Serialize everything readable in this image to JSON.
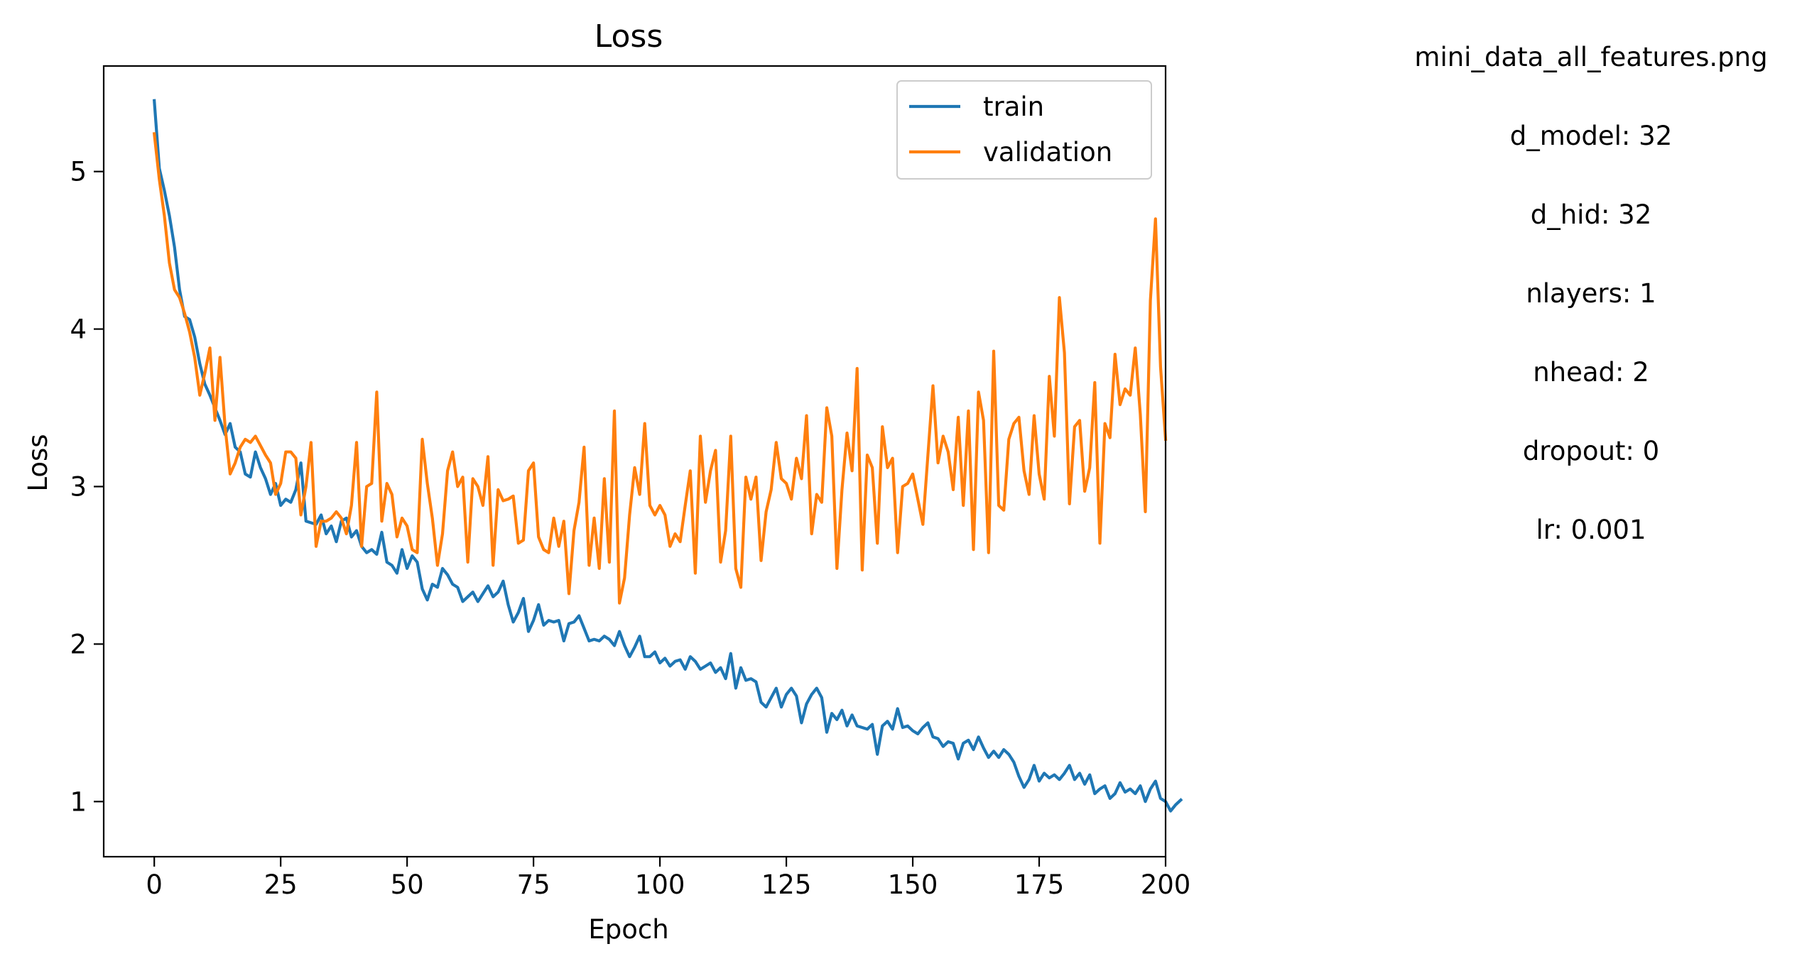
{
  "chart_data": {
    "type": "line",
    "title": "Loss",
    "xlabel": "Epoch",
    "ylabel": "Loss",
    "xlim": [
      -10,
      200
    ],
    "ylim": [
      0.65,
      5.67
    ],
    "xticks": [
      0,
      25,
      50,
      75,
      100,
      125,
      150,
      175,
      200
    ],
    "yticks": [
      1,
      2,
      3,
      4,
      5
    ],
    "grid": false,
    "legend": "top-right",
    "series": [
      {
        "name": "train",
        "color": "#1f77b4",
        "values": [
          5.45,
          5.02,
          4.88,
          4.72,
          4.52,
          4.25,
          4.08,
          4.06,
          3.95,
          3.78,
          3.65,
          3.58,
          3.5,
          3.42,
          3.33,
          3.4,
          3.25,
          3.22,
          3.08,
          3.06,
          3.22,
          3.12,
          3.05,
          2.95,
          3.02,
          2.88,
          2.92,
          2.9,
          2.98,
          3.15,
          2.78,
          2.77,
          2.76,
          2.82,
          2.7,
          2.75,
          2.65,
          2.78,
          2.8,
          2.68,
          2.72,
          2.62,
          2.58,
          2.6,
          2.57,
          2.71,
          2.52,
          2.5,
          2.45,
          2.6,
          2.48,
          2.56,
          2.52,
          2.35,
          2.28,
          2.38,
          2.36,
          2.48,
          2.44,
          2.38,
          2.36,
          2.27,
          2.3,
          2.33,
          2.27,
          2.32,
          2.37,
          2.3,
          2.33,
          2.4,
          2.25,
          2.14,
          2.2,
          2.29,
          2.08,
          2.15,
          2.25,
          2.12,
          2.15,
          2.14,
          2.15,
          2.02,
          2.13,
          2.14,
          2.18,
          2.1,
          2.02,
          2.03,
          2.02,
          2.05,
          2.03,
          1.99,
          2.08,
          1.99,
          1.92,
          1.98,
          2.05,
          1.92,
          1.92,
          1.95,
          1.88,
          1.91,
          1.86,
          1.89,
          1.9,
          1.84,
          1.92,
          1.89,
          1.84,
          1.86,
          1.88,
          1.82,
          1.85,
          1.78,
          1.94,
          1.72,
          1.85,
          1.77,
          1.78,
          1.76,
          1.63,
          1.6,
          1.66,
          1.72,
          1.6,
          1.68,
          1.72,
          1.67,
          1.5,
          1.62,
          1.68,
          1.72,
          1.66,
          1.44,
          1.56,
          1.52,
          1.58,
          1.48,
          1.55,
          1.48,
          1.47,
          1.46,
          1.49,
          1.3,
          1.48,
          1.51,
          1.46,
          1.59,
          1.47,
          1.48,
          1.45,
          1.43,
          1.47,
          1.5,
          1.41,
          1.4,
          1.35,
          1.38,
          1.37,
          1.27,
          1.37,
          1.39,
          1.33,
          1.41,
          1.34,
          1.28,
          1.32,
          1.28,
          1.33,
          1.3,
          1.25,
          1.16,
          1.09,
          1.14,
          1.23,
          1.13,
          1.18,
          1.15,
          1.17,
          1.14,
          1.18,
          1.23,
          1.14,
          1.18,
          1.11,
          1.17,
          1.05,
          1.08,
          1.1,
          1.02,
          1.05,
          1.12,
          1.06,
          1.08,
          1.05,
          1.1,
          1.0,
          1.08,
          1.13,
          1.02,
          1.0,
          0.94,
          0.98,
          1.01
        ]
      },
      {
        "name": "validation",
        "color": "#ff7f0e",
        "values": [
          5.24,
          4.95,
          4.72,
          4.42,
          4.25,
          4.2,
          4.1,
          3.98,
          3.82,
          3.58,
          3.72,
          3.88,
          3.42,
          3.82,
          3.38,
          3.08,
          3.15,
          3.25,
          3.3,
          3.28,
          3.32,
          3.26,
          3.2,
          3.15,
          2.95,
          3.02,
          3.22,
          3.22,
          3.18,
          2.82,
          3.0,
          3.28,
          2.62,
          2.78,
          2.78,
          2.8,
          2.84,
          2.8,
          2.7,
          2.88,
          3.28,
          2.62,
          3.0,
          3.02,
          3.6,
          2.78,
          3.02,
          2.95,
          2.68,
          2.8,
          2.75,
          2.6,
          2.58,
          3.3,
          3.02,
          2.8,
          2.5,
          2.7,
          3.1,
          3.22,
          3.0,
          3.06,
          2.52,
          3.05,
          3.0,
          2.88,
          3.19,
          2.5,
          2.98,
          2.91,
          2.92,
          2.94,
          2.64,
          2.66,
          3.1,
          3.15,
          2.68,
          2.6,
          2.58,
          2.8,
          2.62,
          2.78,
          2.32,
          2.72,
          2.9,
          3.25,
          2.5,
          2.8,
          2.48,
          3.05,
          2.52,
          3.48,
          2.26,
          2.42,
          2.82,
          3.12,
          2.95,
          3.4,
          2.88,
          2.82,
          2.88,
          2.82,
          2.62,
          2.7,
          2.65,
          2.88,
          3.1,
          2.45,
          3.32,
          2.9,
          3.1,
          3.23,
          2.52,
          2.72,
          3.32,
          2.48,
          2.36,
          3.06,
          2.92,
          3.06,
          2.53,
          2.84,
          2.98,
          3.28,
          3.05,
          3.02,
          2.92,
          3.18,
          3.05,
          3.45,
          2.7,
          2.95,
          2.9,
          3.5,
          3.32,
          2.48,
          2.98,
          3.34,
          3.1,
          3.75,
          2.47,
          3.2,
          3.12,
          2.64,
          3.38,
          3.12,
          3.18,
          2.58,
          3.0,
          3.02,
          3.08,
          2.92,
          2.76,
          3.2,
          3.64,
          3.15,
          3.32,
          3.22,
          2.98,
          3.44,
          2.88,
          3.48,
          2.6,
          3.6,
          3.42,
          2.58,
          3.86,
          2.88,
          2.85,
          3.3,
          3.4,
          3.44,
          3.1,
          2.95,
          3.45,
          3.08,
          2.92,
          3.7,
          3.32,
          4.2,
          3.85,
          2.89,
          3.38,
          3.42,
          2.97,
          3.12,
          3.66,
          2.64,
          3.4,
          3.31,
          3.84,
          3.52,
          3.62,
          3.58,
          3.88,
          3.46,
          2.84,
          4.18,
          4.7,
          3.76,
          3.3
        ]
      }
    ]
  },
  "side_info": {
    "lines": [
      "mini_data_all_features.png",
      "d_model: 32",
      "d_hid: 32",
      "nlayers: 1",
      "nhead: 2",
      "dropout: 0",
      "lr: 0.001"
    ]
  }
}
